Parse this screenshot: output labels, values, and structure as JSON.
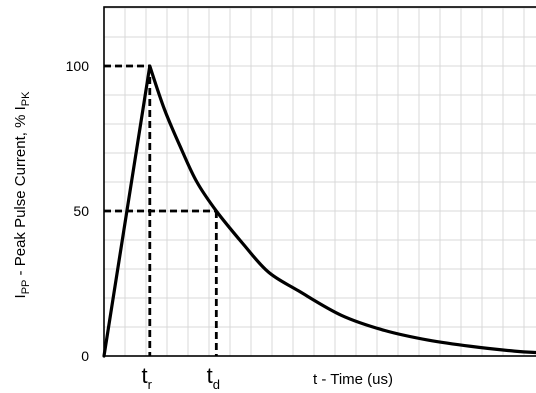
{
  "chart_data": {
    "type": "line",
    "title": "",
    "xlabel": "t - Time (us)",
    "ylabel": {
      "main": "I",
      "sub": "PP",
      "mid": " - Peak Pulse Current, % I",
      "sub2": "PK"
    },
    "y_ticks": [
      "0",
      "50",
      "100"
    ],
    "ylim": [
      0,
      100
    ],
    "xlim": [
      0,
      100
    ],
    "grid": true,
    "markers": [
      {
        "name": "t",
        "sub": "r",
        "x": 10.6,
        "y": 100
      },
      {
        "name": "t",
        "sub": "d",
        "x": 26,
        "y": 50
      }
    ],
    "series": [
      {
        "x": [
          0,
          10.6,
          14,
          18,
          21.5,
          26,
          32,
          38,
          45,
          55,
          65,
          75,
          85,
          95,
          100
        ],
        "y": [
          0,
          100,
          85,
          71,
          60,
          50,
          39,
          29,
          22.5,
          14,
          8.8,
          5.5,
          3.3,
          1.7,
          1.2
        ]
      }
    ]
  }
}
